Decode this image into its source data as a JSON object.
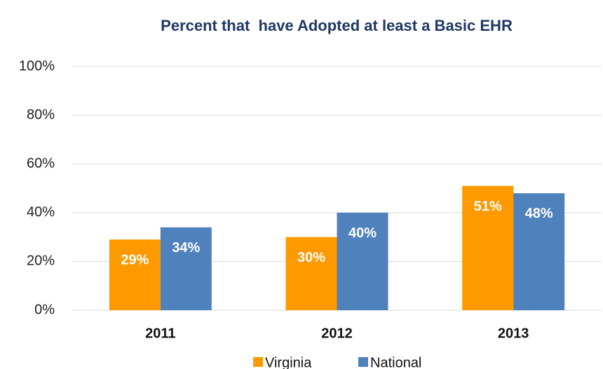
{
  "chart_data": {
    "type": "bar",
    "title": "Percent that  have Adopted at least a Basic EHR",
    "categories": [
      "2011",
      "2012",
      "2013"
    ],
    "series": [
      {
        "name": "Virginia",
        "color": "#ff9900",
        "values": [
          29,
          30,
          51
        ],
        "value_labels": [
          "29%",
          "30%",
          "51%"
        ]
      },
      {
        "name": "National",
        "color": "#4f81bd",
        "values": [
          34,
          40,
          48
        ],
        "value_labels": [
          "34%",
          "40%",
          "48%"
        ]
      }
    ],
    "ylim": [
      0,
      100
    ],
    "yticks": [
      {
        "value": 0,
        "label": "0%"
      },
      {
        "value": 20,
        "label": "20%"
      },
      {
        "value": 40,
        "label": "40%"
      },
      {
        "value": 60,
        "label": "60%"
      },
      {
        "value": 80,
        "label": "80%"
      },
      {
        "value": 100,
        "label": "100%"
      }
    ],
    "grid": true
  }
}
